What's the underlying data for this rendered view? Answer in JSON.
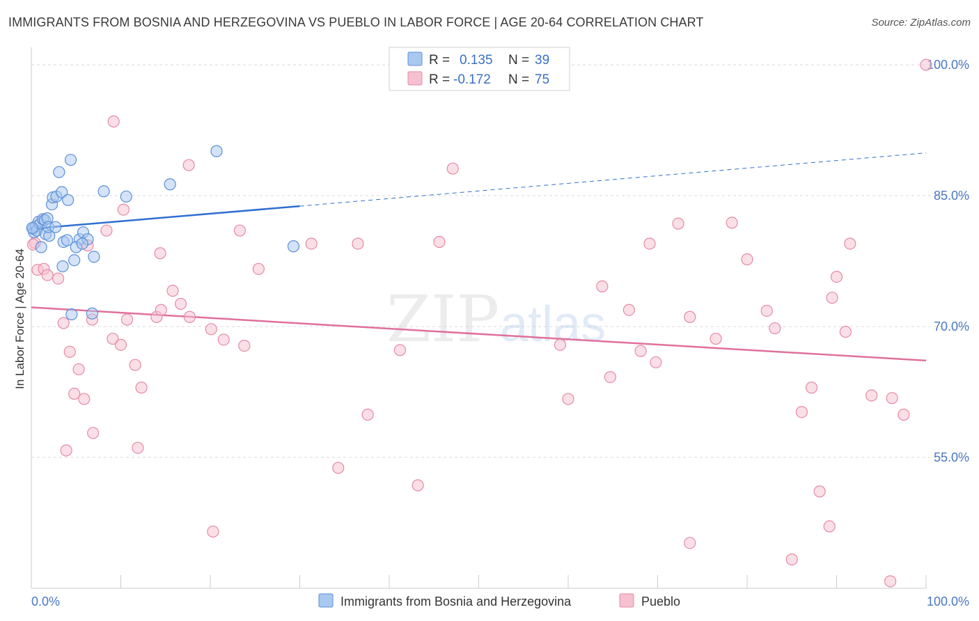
{
  "title": "IMMIGRANTS FROM BOSNIA AND HERZEGOVINA VS PUEBLO IN LABOR FORCE | AGE 20-64 CORRELATION CHART",
  "source": "Source: ZipAtlas.com",
  "watermark": {
    "zip": "ZIP",
    "atlas": "atlas"
  },
  "colors": {
    "blue_fill": "#a9c8f0",
    "blue_stroke": "#5b8fd8",
    "blue_line": "#2f6fcf",
    "pink_fill": "#f6c0d0",
    "pink_stroke": "#e58aa6",
    "pink_line": "#e0709a",
    "grid": "#d9d9d9",
    "tick_text": "#4a78c2"
  },
  "legend": {
    "r_label": "R =",
    "n_label": "N =",
    "series": [
      {
        "name": "Immigrants from Bosnia and Herzegovina",
        "r": "0.135",
        "n": "39",
        "color": "blue"
      },
      {
        "name": "Pueblo",
        "r": "-0.172",
        "n": "75",
        "color": "pink"
      }
    ]
  },
  "chart_data": {
    "type": "scatter",
    "title": "IMMIGRANTS FROM BOSNIA AND HERZEGOVINA VS PUEBLO IN LABOR FORCE | AGE 20-64 CORRELATION CHART",
    "xlabel": "",
    "ylabel": "In Labor Force | Age 20-64",
    "xlim": [
      0,
      100
    ],
    "ylim": [
      40,
      102
    ],
    "x_tick_labels": [
      "0.0%",
      "100.0%"
    ],
    "y_ticks": [
      55,
      70,
      85,
      100
    ],
    "y_tick_labels": [
      "55.0%",
      "70.0%",
      "85.0%",
      "100.0%"
    ],
    "series": [
      {
        "name": "Immigrants from Bosnia and Herzegovina",
        "color": "blue",
        "trend": {
          "x0": 0,
          "y0": 81.2,
          "x1": 30,
          "y1": 83.8,
          "dash_to_x": 100,
          "dash_to_y": 89.9
        },
        "points": [
          [
            0.2,
            81.2
          ],
          [
            0.3,
            80.8
          ],
          [
            0.5,
            81.5
          ],
          [
            0.6,
            81.0
          ],
          [
            0.8,
            82.0
          ],
          [
            1.0,
            81.8
          ],
          [
            1.1,
            79.1
          ],
          [
            1.3,
            82.3
          ],
          [
            1.5,
            82.2
          ],
          [
            1.6,
            80.6
          ],
          [
            1.8,
            82.4
          ],
          [
            2.0,
            80.4
          ],
          [
            1.9,
            81.4
          ],
          [
            2.3,
            84.0
          ],
          [
            2.4,
            84.8
          ],
          [
            2.8,
            84.9
          ],
          [
            3.1,
            87.7
          ],
          [
            3.4,
            85.4
          ],
          [
            3.5,
            76.9
          ],
          [
            3.6,
            79.7
          ],
          [
            4.0,
            79.9
          ],
          [
            4.1,
            84.5
          ],
          [
            4.4,
            89.1
          ],
          [
            4.5,
            71.4
          ],
          [
            4.8,
            77.6
          ],
          [
            5.4,
            80.0
          ],
          [
            5.0,
            79.1
          ],
          [
            5.8,
            80.8
          ],
          [
            6.3,
            80.0
          ],
          [
            6.8,
            71.5
          ],
          [
            7.0,
            78.0
          ],
          [
            8.1,
            85.5
          ],
          [
            10.6,
            84.9
          ],
          [
            15.5,
            86.3
          ],
          [
            20.7,
            90.1
          ],
          [
            29.3,
            79.2
          ],
          [
            0.1,
            81.3
          ],
          [
            2.7,
            81.4
          ],
          [
            5.7,
            79.5
          ]
        ]
      },
      {
        "name": "Pueblo",
        "color": "pink",
        "trend": {
          "x0": 0,
          "y0": 72.2,
          "x1": 100,
          "y1": 66.1
        },
        "points": [
          [
            0.4,
            79.6
          ],
          [
            0.7,
            76.5
          ],
          [
            1.4,
            76.6
          ],
          [
            1.8,
            75.9
          ],
          [
            3.0,
            75.5
          ],
          [
            3.6,
            70.4
          ],
          [
            4.3,
            67.1
          ],
          [
            5.3,
            65.1
          ],
          [
            4.8,
            62.3
          ],
          [
            5.9,
            61.7
          ],
          [
            6.3,
            79.3
          ],
          [
            6.8,
            70.8
          ],
          [
            8.4,
            81.0
          ],
          [
            9.1,
            68.6
          ],
          [
            10.0,
            67.9
          ],
          [
            9.2,
            93.5
          ],
          [
            10.3,
            83.4
          ],
          [
            11.6,
            65.6
          ],
          [
            12.3,
            63.0
          ],
          [
            11.9,
            56.1
          ],
          [
            10.7,
            70.8
          ],
          [
            14.0,
            71.1
          ],
          [
            14.4,
            78.4
          ],
          [
            14.5,
            71.9
          ],
          [
            15.8,
            74.1
          ],
          [
            16.7,
            72.6
          ],
          [
            17.7,
            71.1
          ],
          [
            17.6,
            88.5
          ],
          [
            20.1,
            69.7
          ],
          [
            21.5,
            68.5
          ],
          [
            20.3,
            46.5
          ],
          [
            23.3,
            81.0
          ],
          [
            23.8,
            67.8
          ],
          [
            25.4,
            76.6
          ],
          [
            6.9,
            57.8
          ],
          [
            3.9,
            55.8
          ],
          [
            31.3,
            79.5
          ],
          [
            34.3,
            53.8
          ],
          [
            36.5,
            79.5
          ],
          [
            37.6,
            59.9
          ],
          [
            41.2,
            67.3
          ],
          [
            43.2,
            51.8
          ],
          [
            45.6,
            79.7
          ],
          [
            47.1,
            88.1
          ],
          [
            59.1,
            67.9
          ],
          [
            60.0,
            61.7
          ],
          [
            63.8,
            74.6
          ],
          [
            64.7,
            64.2
          ],
          [
            66.8,
            71.9
          ],
          [
            68.1,
            67.2
          ],
          [
            69.1,
            79.5
          ],
          [
            69.8,
            65.9
          ],
          [
            72.3,
            81.8
          ],
          [
            73.6,
            71.1
          ],
          [
            73.6,
            45.2
          ],
          [
            76.5,
            68.6
          ],
          [
            78.3,
            81.9
          ],
          [
            80.0,
            77.7
          ],
          [
            82.2,
            71.8
          ],
          [
            83.1,
            69.8
          ],
          [
            85.0,
            43.3
          ],
          [
            86.1,
            60.2
          ],
          [
            87.2,
            63.0
          ],
          [
            88.1,
            51.1
          ],
          [
            89.2,
            47.1
          ],
          [
            89.5,
            73.3
          ],
          [
            90.0,
            75.7
          ],
          [
            91.0,
            69.4
          ],
          [
            91.5,
            79.5
          ],
          [
            93.9,
            62.1
          ],
          [
            96.0,
            40.8
          ],
          [
            96.2,
            61.8
          ],
          [
            97.5,
            59.9
          ],
          [
            100.0,
            100.0
          ],
          [
            0.2,
            79.4
          ]
        ]
      }
    ]
  }
}
